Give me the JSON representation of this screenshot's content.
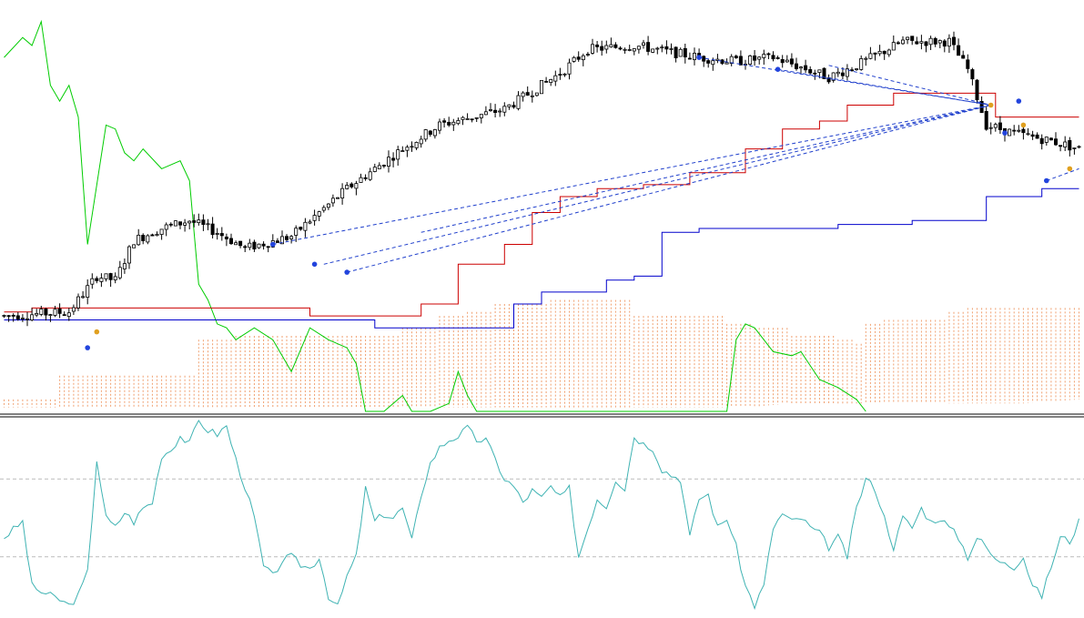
{
  "colors": {
    "background": "#ffffff",
    "candle": "#000000",
    "kijun": "#cc0000",
    "tenkan": "#0000cc",
    "chikou": "#00cc00",
    "cloud": "#f0a070",
    "trendline": "#1f3fcc",
    "marker_blue": "#2244dd",
    "marker_orange": "#e0a020",
    "oscillator": "#3fb3b3",
    "osc_level": "#bbbbbb",
    "separator": "#000000"
  },
  "chart_data": [
    {
      "type": "candlestick",
      "panel": "main",
      "grid": false,
      "ylim": [
        0,
        100
      ],
      "price_anchors": [
        [
          0,
          24
        ],
        [
          14,
          25
        ],
        [
          20,
          34
        ],
        [
          24,
          33
        ],
        [
          28,
          43
        ],
        [
          34,
          46
        ],
        [
          40,
          48
        ],
        [
          46,
          45
        ],
        [
          52,
          41
        ],
        [
          62,
          44
        ],
        [
          74,
          56
        ],
        [
          86,
          66
        ],
        [
          94,
          72
        ],
        [
          108,
          76
        ],
        [
          120,
          85
        ],
        [
          126,
          91
        ],
        [
          136,
          92
        ],
        [
          150,
          89
        ],
        [
          158,
          88
        ],
        [
          166,
          89
        ],
        [
          178,
          84
        ],
        [
          184,
          87
        ],
        [
          194,
          93
        ],
        [
          204,
          93
        ],
        [
          208,
          86
        ],
        [
          212,
          72
        ],
        [
          218,
          70
        ],
        [
          226,
          68
        ],
        [
          232,
          66
        ]
      ],
      "candles": 233,
      "kijun": [
        [
          0,
          25
        ],
        [
          6,
          26
        ],
        [
          12,
          26
        ],
        [
          58,
          26
        ],
        [
          66,
          24
        ],
        [
          75,
          24
        ],
        [
          90,
          27
        ],
        [
          98,
          37
        ],
        [
          108,
          42
        ],
        [
          114,
          50
        ],
        [
          120,
          54
        ],
        [
          128,
          56
        ],
        [
          138,
          57
        ],
        [
          148,
          60
        ],
        [
          160,
          66
        ],
        [
          168,
          71
        ],
        [
          176,
          73
        ],
        [
          182,
          77
        ],
        [
          192,
          80
        ],
        [
          206,
          80
        ],
        [
          214,
          74
        ],
        [
          222,
          74
        ],
        [
          232,
          74
        ]
      ],
      "tenkan": [
        [
          0,
          23
        ],
        [
          4,
          23
        ],
        [
          76,
          23
        ],
        [
          80,
          21
        ],
        [
          96,
          21
        ],
        [
          110,
          27
        ],
        [
          116,
          30
        ],
        [
          130,
          33
        ],
        [
          136,
          34
        ],
        [
          142,
          45
        ],
        [
          150,
          46
        ],
        [
          180,
          47
        ],
        [
          196,
          48
        ],
        [
          212,
          54
        ],
        [
          224,
          56
        ],
        [
          232,
          56
        ]
      ],
      "chikou": [
        [
          0,
          89
        ],
        [
          4,
          94
        ],
        [
          6,
          92
        ],
        [
          8,
          98
        ],
        [
          10,
          82
        ],
        [
          12,
          78
        ],
        [
          14,
          82
        ],
        [
          16,
          74
        ],
        [
          18,
          42
        ],
        [
          22,
          72
        ],
        [
          24,
          71
        ],
        [
          26,
          65
        ],
        [
          28,
          63
        ],
        [
          30,
          66
        ],
        [
          34,
          61
        ],
        [
          38,
          63
        ],
        [
          40,
          58
        ],
        [
          42,
          32
        ],
        [
          44,
          28
        ],
        [
          46,
          22
        ],
        [
          48,
          21
        ],
        [
          50,
          18
        ],
        [
          54,
          21
        ],
        [
          58,
          18
        ],
        [
          62,
          10
        ],
        [
          66,
          21
        ],
        [
          70,
          18
        ],
        [
          74,
          16
        ],
        [
          76,
          12
        ],
        [
          78,
          0
        ],
        [
          82,
          0
        ],
        [
          86,
          4
        ],
        [
          88,
          0
        ],
        [
          92,
          0
        ],
        [
          96,
          2
        ],
        [
          98,
          10
        ],
        [
          100,
          4
        ],
        [
          102,
          0
        ],
        [
          156,
          0
        ],
        [
          158,
          18
        ],
        [
          160,
          22
        ],
        [
          162,
          21
        ],
        [
          164,
          18
        ],
        [
          166,
          15
        ],
        [
          170,
          14
        ],
        [
          172,
          15
        ],
        [
          176,
          8
        ],
        [
          180,
          6
        ],
        [
          184,
          3
        ],
        [
          186,
          0
        ]
      ],
      "cloud_top": [
        [
          0,
          3
        ],
        [
          8,
          3
        ],
        [
          12,
          9
        ],
        [
          20,
          9
        ],
        [
          40,
          9
        ],
        [
          42,
          18
        ],
        [
          50,
          19
        ],
        [
          74,
          19
        ],
        [
          86,
          21
        ],
        [
          94,
          24
        ],
        [
          100,
          25
        ],
        [
          106,
          27
        ],
        [
          112,
          27
        ],
        [
          118,
          28
        ],
        [
          124,
          28
        ],
        [
          130,
          28
        ],
        [
          136,
          24
        ],
        [
          150,
          24
        ],
        [
          156,
          22
        ],
        [
          162,
          21
        ],
        [
          170,
          19
        ],
        [
          180,
          18
        ],
        [
          184,
          17
        ],
        [
          186,
          22
        ],
        [
          190,
          23
        ],
        [
          200,
          23
        ],
        [
          204,
          25
        ],
        [
          208,
          26
        ],
        [
          232,
          26
        ]
      ],
      "cloud_bottom": [
        [
          0,
          1
        ],
        [
          40,
          1
        ],
        [
          60,
          1
        ],
        [
          80,
          1
        ],
        [
          100,
          1
        ],
        [
          120,
          1
        ],
        [
          140,
          1
        ],
        [
          160,
          1
        ],
        [
          170,
          2
        ],
        [
          180,
          2
        ],
        [
          190,
          2
        ],
        [
          200,
          2
        ],
        [
          210,
          2
        ],
        [
          220,
          2
        ],
        [
          232,
          3
        ]
      ],
      "trendlines": [
        {
          "from": [
            58,
            42
          ],
          "to": [
            213,
            77
          ]
        },
        {
          "from": [
            69,
            37
          ],
          "to": [
            213,
            77
          ]
        },
        {
          "from": [
            74,
            35
          ],
          "to": [
            213,
            77
          ]
        },
        {
          "from": [
            90,
            45
          ],
          "to": [
            213,
            77
          ]
        },
        {
          "from": [
            150,
            89
          ],
          "to": [
            213,
            77
          ]
        },
        {
          "from": [
            167,
            86
          ],
          "to": [
            213,
            77
          ]
        },
        {
          "from": [
            178,
            87
          ],
          "to": [
            213,
            77
          ]
        },
        {
          "from": [
            225,
            58
          ],
          "to": [
            232,
            61
          ]
        }
      ],
      "markers": [
        {
          "x": 18,
          "y": 16,
          "kind": "blue"
        },
        {
          "x": 20,
          "y": 20,
          "kind": "orange"
        },
        {
          "x": 58,
          "y": 42,
          "kind": "blue"
        },
        {
          "x": 67,
          "y": 37,
          "kind": "blue"
        },
        {
          "x": 74,
          "y": 35,
          "kind": "blue"
        },
        {
          "x": 150,
          "y": 89,
          "kind": "blue"
        },
        {
          "x": 167,
          "y": 86,
          "kind": "blue"
        },
        {
          "x": 213,
          "y": 77,
          "kind": "orange"
        },
        {
          "x": 216,
          "y": 70,
          "kind": "blue"
        },
        {
          "x": 219,
          "y": 78,
          "kind": "blue"
        },
        {
          "x": 220,
          "y": 72,
          "kind": "orange"
        },
        {
          "x": 225,
          "y": 58,
          "kind": "blue"
        },
        {
          "x": 230,
          "y": 61,
          "kind": "orange"
        }
      ]
    },
    {
      "type": "line",
      "panel": "oscillator",
      "grid": false,
      "ylim": [
        0,
        100
      ],
      "levels": [
        70,
        30
      ],
      "series_anchors": [
        [
          0,
          40
        ],
        [
          2,
          44
        ],
        [
          4,
          48
        ],
        [
          6,
          15
        ],
        [
          8,
          12
        ],
        [
          10,
          10
        ],
        [
          12,
          8
        ],
        [
          14,
          5
        ],
        [
          16,
          10
        ],
        [
          18,
          22
        ],
        [
          20,
          80
        ],
        [
          22,
          50
        ],
        [
          24,
          45
        ],
        [
          26,
          53
        ],
        [
          28,
          48
        ],
        [
          30,
          55
        ],
        [
          32,
          58
        ],
        [
          34,
          82
        ],
        [
          36,
          85
        ],
        [
          38,
          92
        ],
        [
          40,
          88
        ],
        [
          42,
          100
        ],
        [
          44,
          95
        ],
        [
          46,
          93
        ],
        [
          48,
          97
        ],
        [
          50,
          80
        ],
        [
          52,
          66
        ],
        [
          54,
          50
        ],
        [
          56,
          25
        ],
        [
          58,
          20
        ],
        [
          60,
          28
        ],
        [
          62,
          30
        ],
        [
          64,
          26
        ],
        [
          66,
          24
        ],
        [
          68,
          30
        ],
        [
          70,
          10
        ],
        [
          72,
          4
        ],
        [
          74,
          20
        ],
        [
          76,
          30
        ],
        [
          78,
          65
        ],
        [
          80,
          48
        ],
        [
          82,
          52
        ],
        [
          84,
          50
        ],
        [
          86,
          55
        ],
        [
          88,
          38
        ],
        [
          90,
          62
        ],
        [
          92,
          78
        ],
        [
          94,
          86
        ],
        [
          96,
          90
        ],
        [
          98,
          92
        ],
        [
          100,
          96
        ],
        [
          102,
          90
        ],
        [
          104,
          90
        ],
        [
          106,
          80
        ],
        [
          108,
          70
        ],
        [
          110,
          66
        ],
        [
          112,
          58
        ],
        [
          114,
          64
        ],
        [
          116,
          60
        ],
        [
          118,
          66
        ],
        [
          120,
          60
        ],
        [
          122,
          65
        ],
        [
          124,
          30
        ],
        [
          126,
          45
        ],
        [
          128,
          60
        ],
        [
          130,
          56
        ],
        [
          132,
          70
        ],
        [
          134,
          65
        ],
        [
          136,
          92
        ],
        [
          138,
          88
        ],
        [
          140,
          86
        ],
        [
          142,
          75
        ],
        [
          144,
          72
        ],
        [
          146,
          70
        ],
        [
          148,
          40
        ],
        [
          150,
          60
        ],
        [
          152,
          62
        ],
        [
          154,
          45
        ],
        [
          156,
          50
        ],
        [
          158,
          35
        ],
        [
          160,
          15
        ],
        [
          162,
          5
        ],
        [
          164,
          15
        ],
        [
          166,
          45
        ],
        [
          168,
          52
        ],
        [
          170,
          48
        ],
        [
          172,
          50
        ],
        [
          174,
          45
        ],
        [
          176,
          42
        ],
        [
          178,
          35
        ],
        [
          180,
          40
        ],
        [
          182,
          30
        ],
        [
          184,
          55
        ],
        [
          186,
          70
        ],
        [
          188,
          65
        ],
        [
          190,
          50
        ],
        [
          192,
          35
        ],
        [
          194,
          50
        ],
        [
          196,
          45
        ],
        [
          198,
          55
        ],
        [
          200,
          48
        ],
        [
          202,
          50
        ],
        [
          204,
          45
        ],
        [
          206,
          40
        ],
        [
          208,
          30
        ],
        [
          210,
          40
        ],
        [
          212,
          35
        ],
        [
          214,
          28
        ],
        [
          216,
          28
        ],
        [
          218,
          25
        ],
        [
          220,
          30
        ],
        [
          222,
          15
        ],
        [
          224,
          10
        ],
        [
          226,
          25
        ],
        [
          228,
          40
        ],
        [
          230,
          38
        ],
        [
          232,
          48
        ]
      ]
    }
  ]
}
